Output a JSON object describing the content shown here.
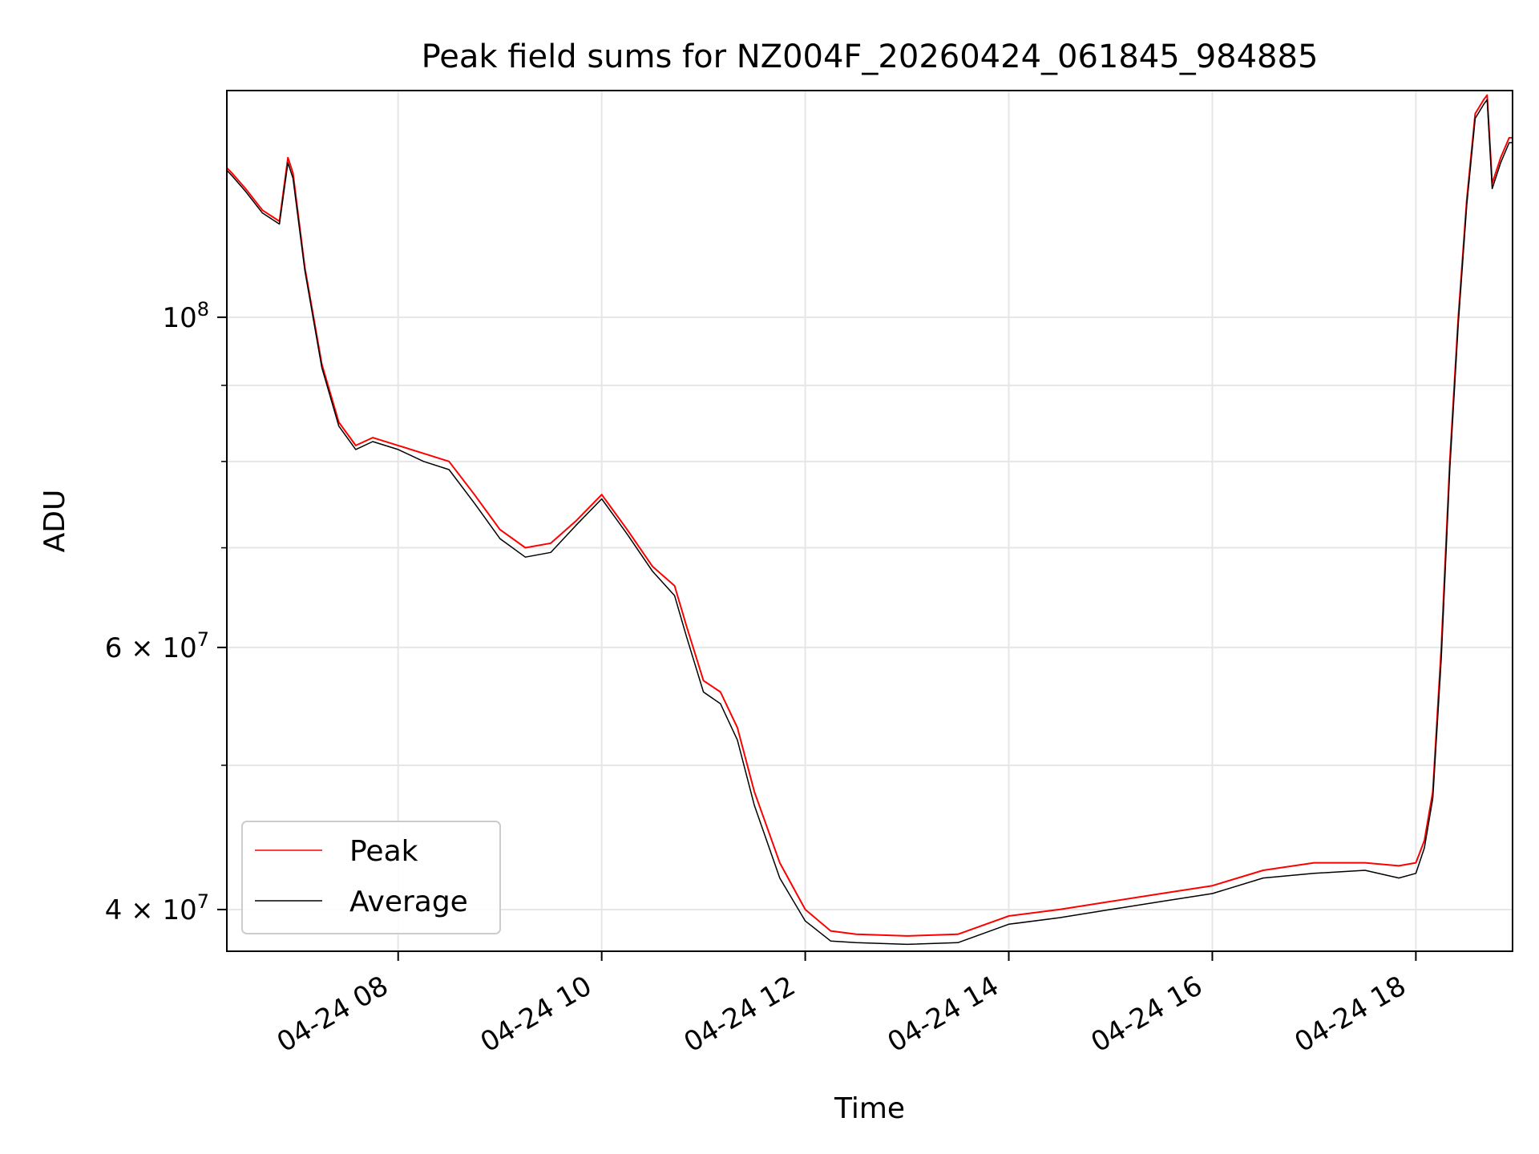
{
  "chart_data": {
    "type": "line",
    "title": "Peak field sums for NZ004F_20260424_061845_984885",
    "xlabel": "Time",
    "ylabel": "ADU",
    "y_scale": "log",
    "ylim": [
      37500000,
      142000000
    ],
    "xlim": [
      "2026-04-24 06:19",
      "2026-04-24 18:57"
    ],
    "x_ticks": [
      {
        "time": "2026-04-24 08:00",
        "label": "04-24 08"
      },
      {
        "time": "2026-04-24 10:00",
        "label": "04-24 10"
      },
      {
        "time": "2026-04-24 12:00",
        "label": "04-24 12"
      },
      {
        "time": "2026-04-24 14:00",
        "label": "04-24 14"
      },
      {
        "time": "2026-04-24 16:00",
        "label": "04-24 16"
      },
      {
        "time": "2026-04-24 18:00",
        "label": "04-24 18"
      }
    ],
    "y_major_ticks": [
      {
        "value": 100000000,
        "base": "10",
        "exp": "8"
      },
      {
        "value": 60000000,
        "base": "6 × 10",
        "exp": "7"
      },
      {
        "value": 40000000,
        "base": "4 × 10",
        "exp": "7"
      }
    ],
    "y_minor_ticks": [
      50000000,
      70000000,
      80000000,
      90000000
    ],
    "grid": true,
    "legend_position": "lower-left",
    "series": [
      {
        "name": "Peak",
        "color": "#ff0000",
        "x": [
          "2026-04-24 06:19",
          "2026-04-24 06:22",
          "2026-04-24 06:30",
          "2026-04-24 06:40",
          "2026-04-24 06:50",
          "2026-04-24 06:55",
          "2026-04-24 06:58",
          "2026-04-24 07:05",
          "2026-04-24 07:15",
          "2026-04-24 07:25",
          "2026-04-24 07:35",
          "2026-04-24 07:45",
          "2026-04-24 08:00",
          "2026-04-24 08:15",
          "2026-04-24 08:30",
          "2026-04-24 08:45",
          "2026-04-24 09:00",
          "2026-04-24 09:15",
          "2026-04-24 09:30",
          "2026-04-24 09:45",
          "2026-04-24 10:00",
          "2026-04-24 10:15",
          "2026-04-24 10:30",
          "2026-04-24 10:43",
          "2026-04-24 10:50",
          "2026-04-24 11:00",
          "2026-04-24 11:10",
          "2026-04-24 11:20",
          "2026-04-24 11:30",
          "2026-04-24 11:45",
          "2026-04-24 12:00",
          "2026-04-24 12:15",
          "2026-04-24 12:30",
          "2026-04-24 13:00",
          "2026-04-24 13:30",
          "2026-04-24 14:00",
          "2026-04-24 14:30",
          "2026-04-24 15:00",
          "2026-04-24 15:30",
          "2026-04-24 16:00",
          "2026-04-24 16:30",
          "2026-04-24 17:00",
          "2026-04-24 17:30",
          "2026-04-24 17:50",
          "2026-04-24 18:00",
          "2026-04-24 18:05",
          "2026-04-24 18:10",
          "2026-04-24 18:15",
          "2026-04-24 18:20",
          "2026-04-24 18:25",
          "2026-04-24 18:30",
          "2026-04-24 18:35",
          "2026-04-24 18:40",
          "2026-04-24 18:42",
          "2026-04-24 18:45",
          "2026-04-24 18:50",
          "2026-04-24 18:55",
          "2026-04-24 18:57"
        ],
        "y": [
          126000000,
          125000000,
          122000000,
          118000000,
          116000000,
          128000000,
          125000000,
          108000000,
          93000000,
          85000000,
          82000000,
          83000000,
          82000000,
          81000000,
          80000000,
          76000000,
          72000000,
          70000000,
          70500000,
          73000000,
          76000000,
          72000000,
          68000000,
          66000000,
          62000000,
          57000000,
          56000000,
          53000000,
          48000000,
          43000000,
          40000000,
          38700000,
          38500000,
          38400000,
          38500000,
          39600000,
          40000000,
          40500000,
          41000000,
          41500000,
          42500000,
          43000000,
          43000000,
          42800000,
          43000000,
          44500000,
          48000000,
          60000000,
          80000000,
          100000000,
          120000000,
          137000000,
          140000000,
          141000000,
          123000000,
          128000000,
          132000000,
          132000000
        ]
      },
      {
        "name": "Average",
        "color": "#000000",
        "x": [
          "2026-04-24 06:19",
          "2026-04-24 06:22",
          "2026-04-24 06:30",
          "2026-04-24 06:40",
          "2026-04-24 06:50",
          "2026-04-24 06:55",
          "2026-04-24 06:58",
          "2026-04-24 07:05",
          "2026-04-24 07:15",
          "2026-04-24 07:25",
          "2026-04-24 07:35",
          "2026-04-24 07:45",
          "2026-04-24 08:00",
          "2026-04-24 08:15",
          "2026-04-24 08:30",
          "2026-04-24 08:45",
          "2026-04-24 09:00",
          "2026-04-24 09:15",
          "2026-04-24 09:30",
          "2026-04-24 09:45",
          "2026-04-24 10:00",
          "2026-04-24 10:15",
          "2026-04-24 10:30",
          "2026-04-24 10:43",
          "2026-04-24 10:50",
          "2026-04-24 11:00",
          "2026-04-24 11:10",
          "2026-04-24 11:20",
          "2026-04-24 11:30",
          "2026-04-24 11:45",
          "2026-04-24 12:00",
          "2026-04-24 12:15",
          "2026-04-24 12:30",
          "2026-04-24 13:00",
          "2026-04-24 13:30",
          "2026-04-24 14:00",
          "2026-04-24 14:30",
          "2026-04-24 15:00",
          "2026-04-24 15:30",
          "2026-04-24 16:00",
          "2026-04-24 16:30",
          "2026-04-24 17:00",
          "2026-04-24 17:30",
          "2026-04-24 17:50",
          "2026-04-24 18:00",
          "2026-04-24 18:05",
          "2026-04-24 18:10",
          "2026-04-24 18:15",
          "2026-04-24 18:20",
          "2026-04-24 18:25",
          "2026-04-24 18:30",
          "2026-04-24 18:35",
          "2026-04-24 18:40",
          "2026-04-24 18:42",
          "2026-04-24 18:45",
          "2026-04-24 18:50",
          "2026-04-24 18:55",
          "2026-04-24 18:57"
        ],
        "y": [
          125500000,
          124500000,
          121500000,
          117500000,
          115500000,
          127000000,
          124000000,
          107500000,
          92500000,
          84500000,
          81500000,
          82500000,
          81500000,
          80000000,
          79000000,
          75000000,
          71000000,
          69000000,
          69500000,
          72500000,
          75500000,
          71500000,
          67500000,
          65000000,
          61000000,
          56000000,
          55000000,
          52000000,
          47000000,
          42000000,
          39300000,
          38100000,
          38000000,
          37900000,
          38000000,
          39100000,
          39500000,
          40000000,
          40500000,
          41000000,
          42000000,
          42300000,
          42500000,
          42000000,
          42300000,
          44000000,
          47500000,
          59000000,
          79000000,
          99000000,
          119000000,
          136000000,
          139000000,
          140000000,
          122000000,
          127000000,
          131000000,
          131000000
        ]
      }
    ]
  }
}
